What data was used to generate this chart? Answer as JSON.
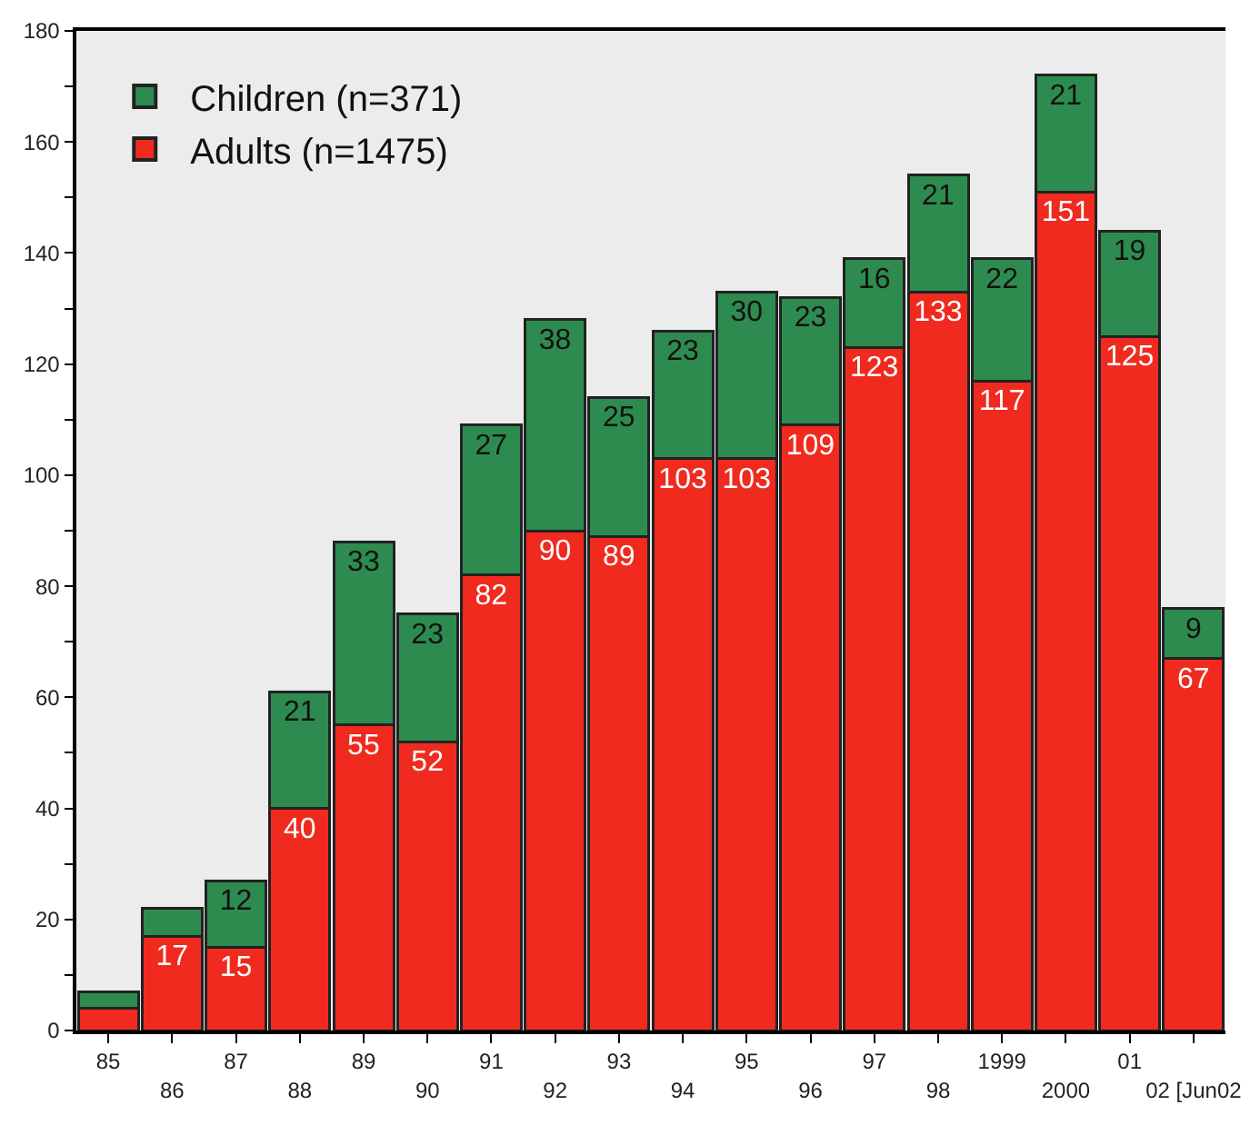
{
  "chart_data": {
    "type": "bar",
    "stacked": true,
    "categories": [
      "85",
      "86",
      "87",
      "88",
      "89",
      "90",
      "91",
      "92",
      "93",
      "94",
      "95",
      "96",
      "97",
      "98",
      "1999",
      "2000",
      "01",
      "02 [Jun02"
    ],
    "series": [
      {
        "name": "Adults (n=1475)",
        "color": "#f02a1e",
        "values": [
          4,
          17,
          15,
          40,
          55,
          52,
          82,
          90,
          89,
          103,
          103,
          109,
          123,
          133,
          117,
          151,
          125,
          67
        ],
        "value_labels": [
          null,
          "17",
          "15",
          "40",
          "55",
          "52",
          "82",
          "90",
          "89",
          "103",
          "103",
          "109",
          "123",
          "133",
          "117",
          "151",
          "125",
          "67"
        ]
      },
      {
        "name": "Children (n=371)",
        "color": "#2e8b4f",
        "values": [
          3,
          5,
          12,
          21,
          33,
          23,
          27,
          38,
          25,
          23,
          30,
          23,
          16,
          21,
          22,
          21,
          19,
          9
        ],
        "value_labels": [
          null,
          null,
          "12",
          "21",
          "33",
          "23",
          "27",
          "38",
          "25",
          "23",
          "30",
          "23",
          "16",
          "21",
          "22",
          "21",
          "19",
          "9"
        ]
      }
    ],
    "ylim": [
      0,
      180
    ],
    "yticks": [
      0,
      {
        "value": 10,
        "label": null
      },
      20,
      {
        "value": 30,
        "label": null
      },
      40,
      {
        "value": 50,
        "label": null
      },
      60,
      {
        "value": 70,
        "label": null
      },
      80,
      {
        "value": 90,
        "label": null
      },
      100,
      {
        "value": 110,
        "label": null
      },
      120,
      {
        "value": 130,
        "label": null
      },
      140,
      {
        "value": 150,
        "label": null
      },
      160,
      {
        "value": 170,
        "label": null
      },
      180
    ],
    "grid": false,
    "legend": "top left"
  }
}
